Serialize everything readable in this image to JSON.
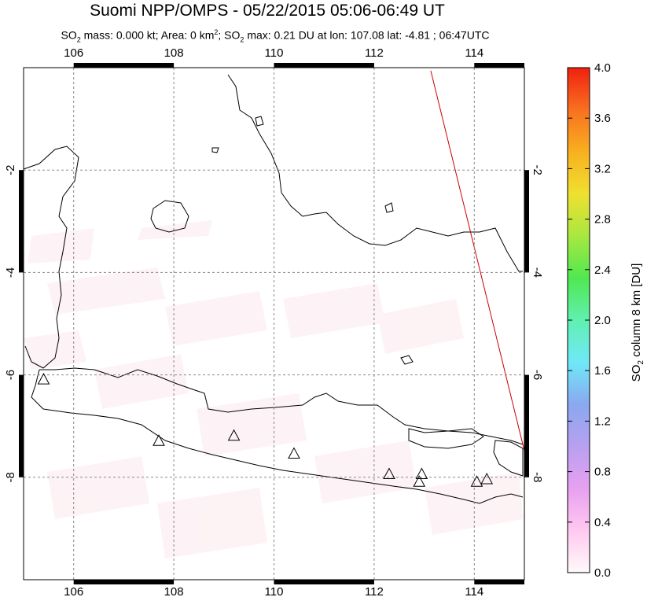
{
  "header": {
    "title": "Suomi NPP/OMPS - 05/22/2015 05:06-06:49 UT",
    "subtitle_parts": [
      "SO",
      "2",
      " mass: 0.000 kt; Area: 0 km",
      "2",
      "; SO",
      "2",
      " max: 0.21 DU at lon: 107.08 lat: -4.81 ; 06:47UTC"
    ]
  },
  "map": {
    "lon_range": [
      105,
      115
    ],
    "lat_range": [
      -10,
      0
    ],
    "lon_ticks": [
      "106",
      "108",
      "110",
      "112",
      "114"
    ],
    "lat_ticks": [
      "-2",
      "-4",
      "-6",
      "-8"
    ],
    "lon_tick_values": [
      106,
      108,
      110,
      112,
      114
    ],
    "lat_tick_values": [
      -2,
      -4,
      -6,
      -8
    ],
    "grid": "dashed",
    "coast_color": "#000000",
    "orbit_edge_color": "#cc0000",
    "volcano_icon": "triangle-icon"
  },
  "volcanoes": [
    {
      "lon": 105.4,
      "lat": -6.1
    },
    {
      "lon": 107.7,
      "lat": -7.3
    },
    {
      "lon": 109.2,
      "lat": -7.2
    },
    {
      "lon": 110.4,
      "lat": -7.55
    },
    {
      "lon": 112.3,
      "lat": -7.95
    },
    {
      "lon": 112.95,
      "lat": -7.95
    },
    {
      "lon": 112.9,
      "lat": -8.1
    },
    {
      "lon": 114.05,
      "lat": -8.1
    },
    {
      "lon": 114.25,
      "lat": -8.05
    }
  ],
  "colorbar": {
    "label_parts": [
      "SO",
      "2",
      " column 8 km [DU]"
    ],
    "ticks": [
      "0.0",
      "0.4",
      "0.8",
      "1.2",
      "1.6",
      "2.0",
      "2.4",
      "2.8",
      "3.2",
      "3.6",
      "4.0"
    ],
    "min": 0,
    "max": 4,
    "colors": [
      "#fffafa",
      "#ffc8f0",
      "#e8a0f0",
      "#b8a0f0",
      "#8aa8f0",
      "#70e8f8",
      "#60f0b0",
      "#50e850",
      "#a8e840",
      "#f0e030",
      "#f8b020",
      "#f87020",
      "#f02010"
    ]
  }
}
